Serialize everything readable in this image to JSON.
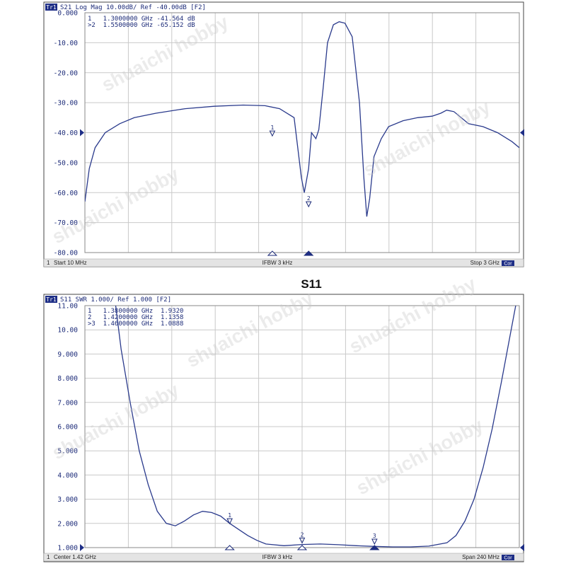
{
  "colors": {
    "trace": "#2a3a8c",
    "grid": "#c9c9c9",
    "frame": "#444444",
    "header_text": "#1b2a78",
    "status_bar": "#e4e4e4",
    "badge": "#1e2e86",
    "marker": "#1b2a78"
  },
  "between_title": "S11",
  "watermark": "shuaichi hobby",
  "chart_data": [
    {
      "type": "line",
      "header": {
        "badge": "Tr1",
        "text": "S21 Log Mag 10.00dB/ Ref -40.00dB [F2]"
      },
      "marker_readouts": [
        "1   1.3000000 GHz -41.564 dB",
        ">2  1.5500000 GHz -65.152 dB"
      ],
      "ytick_labels": [
        "0.000",
        "-10.00",
        "-20.00",
        "-30.00",
        "-40.00",
        "-50.00",
        "-60.00",
        "-70.00",
        "-80.00"
      ],
      "ylim": [
        -80,
        0
      ],
      "ref_value": -40,
      "xlim": [
        0.01,
        3.0
      ],
      "x_unit": "GHz",
      "grid": true,
      "status": {
        "left_num": "1",
        "left": "Start 10 MHz",
        "center": "IFBW 3 kHz",
        "right": "Stop 3 GHz",
        "badge": "Cor"
      },
      "series": [
        {
          "points": [
            [
              0.01,
              -63
            ],
            [
              0.04,
              -52
            ],
            [
              0.08,
              -45
            ],
            [
              0.15,
              -40
            ],
            [
              0.25,
              -37
            ],
            [
              0.35,
              -35
            ],
            [
              0.5,
              -33.5
            ],
            [
              0.7,
              -32
            ],
            [
              0.9,
              -31.2
            ],
            [
              1.1,
              -30.8
            ],
            [
              1.25,
              -31
            ],
            [
              1.35,
              -32
            ],
            [
              1.45,
              -35
            ],
            [
              1.5,
              -55
            ],
            [
              1.52,
              -60
            ],
            [
              1.55,
              -52
            ],
            [
              1.57,
              -40
            ],
            [
              1.6,
              -42
            ],
            [
              1.62,
              -39
            ],
            [
              1.65,
              -25
            ],
            [
              1.68,
              -10
            ],
            [
              1.72,
              -4
            ],
            [
              1.76,
              -3
            ],
            [
              1.8,
              -3.5
            ],
            [
              1.85,
              -8
            ],
            [
              1.9,
              -30
            ],
            [
              1.93,
              -55
            ],
            [
              1.95,
              -68
            ],
            [
              1.97,
              -62
            ],
            [
              2.0,
              -48
            ],
            [
              2.05,
              -42
            ],
            [
              2.1,
              -38
            ],
            [
              2.2,
              -36
            ],
            [
              2.3,
              -35
            ],
            [
              2.4,
              -34.5
            ],
            [
              2.46,
              -33.5
            ],
            [
              2.5,
              -32.5
            ],
            [
              2.55,
              -33
            ],
            [
              2.65,
              -37
            ],
            [
              2.75,
              -38
            ],
            [
              2.85,
              -40
            ],
            [
              2.95,
              -43
            ],
            [
              3.0,
              -45
            ]
          ]
        }
      ],
      "markers": [
        {
          "label": "1",
          "x": 1.3,
          "y": -41.564
        },
        {
          "label": "2",
          "x": 1.55,
          "y": -65.152
        }
      ],
      "axis_markers": [
        {
          "kind": "open",
          "x": 1.3
        },
        {
          "kind": "filled",
          "x": 1.55
        }
      ],
      "ref_triangles": [
        "left",
        "right"
      ]
    },
    {
      "type": "line",
      "header": {
        "badge": "Tr1",
        "text": "S11 SWR 1.000/ Ref 1.000 [F2]"
      },
      "marker_readouts": [
        "1   1.3800000 GHz  1.9320",
        "2   1.4200000 GHz  1.1358",
        ">3  1.4600000 GHz  1.0888"
      ],
      "ytick_labels": [
        "11.00",
        "10.00",
        "9.000",
        "8.000",
        "7.000",
        "6.000",
        "5.000",
        "4.000",
        "3.000",
        "2.000",
        "1.000"
      ],
      "ylim": [
        1,
        11
      ],
      "xlim": [
        1.3,
        1.54
      ],
      "x_unit": "GHz",
      "grid": true,
      "status": {
        "left_num": "1",
        "left": "Center 1.42 GHz",
        "center": "IFBW 3 kHz",
        "right": "Span 240 MHz",
        "badge": "Cor"
      },
      "series": [
        {
          "points": [
            [
              1.317,
              11.0
            ],
            [
              1.32,
              9.2
            ],
            [
              1.325,
              7.0
            ],
            [
              1.33,
              5.0
            ],
            [
              1.335,
              3.6
            ],
            [
              1.34,
              2.5
            ],
            [
              1.345,
              2.0
            ],
            [
              1.35,
              1.9
            ],
            [
              1.355,
              2.1
            ],
            [
              1.36,
              2.35
            ],
            [
              1.365,
              2.5
            ],
            [
              1.37,
              2.45
            ],
            [
              1.375,
              2.3
            ],
            [
              1.38,
              2.0
            ],
            [
              1.385,
              1.75
            ],
            [
              1.39,
              1.5
            ],
            [
              1.395,
              1.3
            ],
            [
              1.4,
              1.15
            ],
            [
              1.41,
              1.08
            ],
            [
              1.42,
              1.13
            ],
            [
              1.43,
              1.15
            ],
            [
              1.44,
              1.12
            ],
            [
              1.45,
              1.08
            ],
            [
              1.46,
              1.05
            ],
            [
              1.47,
              1.03
            ],
            [
              1.48,
              1.03
            ],
            [
              1.49,
              1.06
            ],
            [
              1.5,
              1.2
            ],
            [
              1.505,
              1.5
            ],
            [
              1.51,
              2.1
            ],
            [
              1.515,
              3.0
            ],
            [
              1.52,
              4.3
            ],
            [
              1.525,
              5.9
            ],
            [
              1.53,
              7.8
            ],
            [
              1.535,
              9.8
            ],
            [
              1.538,
              11.0
            ]
          ]
        }
      ],
      "markers": [
        {
          "label": "1",
          "x": 1.38,
          "y": 1.932
        },
        {
          "label": "2",
          "x": 1.42,
          "y": 1.1358
        },
        {
          "label": "3",
          "x": 1.46,
          "y": 1.0888
        }
      ],
      "axis_markers": [
        {
          "kind": "open",
          "x": 1.38
        },
        {
          "kind": "open",
          "x": 1.42
        },
        {
          "kind": "filled",
          "x": 1.46
        }
      ],
      "ref_triangles": [
        "left",
        "right"
      ]
    }
  ]
}
